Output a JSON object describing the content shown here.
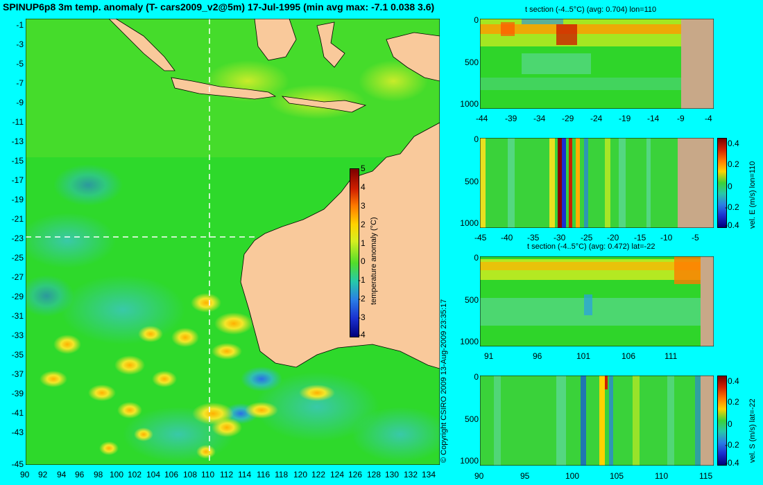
{
  "title": "SPINUP6p8 3m temp. anomaly (T- cars2009_v2@5m) 17-Jul-1995 (min avg max: -7.1 0.038 3.6)",
  "map": {
    "y_ticks": [
      "-1",
      "-3",
      "-5",
      "-7",
      "-9",
      "-11",
      "-13",
      "-15",
      "-17",
      "-19",
      "-21",
      "-23",
      "-25",
      "-27",
      "-29",
      "-31",
      "-33",
      "-35",
      "-37",
      "-39",
      "-41",
      "-43",
      "-45"
    ],
    "x_ticks": [
      "90",
      "92",
      "94",
      "96",
      "98",
      "100",
      "102",
      "104",
      "106",
      "108",
      "110",
      "112",
      "114",
      "116",
      "118",
      "120",
      "122",
      "124",
      "126",
      "128",
      "130",
      "132",
      "134"
    ],
    "colorbar": {
      "label": "temperature anomaly (°C)",
      "ticks": [
        "5",
        "4",
        "3",
        "2",
        "1",
        "0",
        "-1",
        "-2",
        "-3",
        "-4"
      ]
    },
    "copyright": "© Copyright CSIRO 2009  13-Aug-2009 23:35:17",
    "colors": {
      "land": "#f9c99b",
      "ocean": "#2ed92b",
      "warm": "#f0e72b",
      "cool": "#30bfb0",
      "crosshair": "#ffffff"
    }
  },
  "panels": [
    {
      "title": "t section (-4..5°C) (avg: 0.704) lon=110",
      "y_ticks": [
        "0",
        "500",
        "1000"
      ],
      "x_ticks": [
        "-44",
        "-39",
        "-34",
        "-29",
        "-24",
        "-19",
        "-14",
        "-9",
        "-4"
      ]
    },
    {
      "title": "",
      "y_ticks": [
        "0",
        "500",
        "1000"
      ],
      "x_ticks": [
        "-45",
        "-40",
        "-35",
        "-30",
        "-25",
        "-20",
        "-15",
        "-10",
        "-5"
      ],
      "colorbar": {
        "label": "vel. E (m/s) lon=110",
        "ticks": [
          "0.4",
          "0.2",
          "0",
          "-0.2",
          "-0.4"
        ]
      }
    },
    {
      "title": "t section (-4..5°C) (avg: 0.472) lat=-22",
      "y_ticks": [
        "0",
        "500",
        "1000"
      ],
      "x_ticks": [
        "91",
        "96",
        "101",
        "106",
        "111"
      ]
    },
    {
      "title": "",
      "y_ticks": [
        "0",
        "500",
        "1000"
      ],
      "x_ticks": [
        "90",
        "95",
        "100",
        "105",
        "110",
        "115"
      ],
      "colorbar": {
        "label": "vel. S (m/s) lat=-22",
        "ticks": [
          "0.4",
          "0.2",
          "0",
          "-0.2",
          "-0.4"
        ]
      }
    }
  ]
}
